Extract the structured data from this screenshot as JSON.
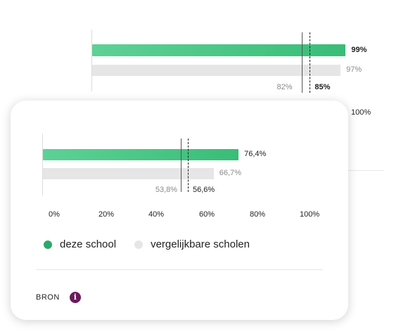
{
  "chart_data": [
    {
      "type": "bar",
      "orientation": "horizontal",
      "series": [
        {
          "name": "deze school",
          "values": [
            99
          ]
        },
        {
          "name": "vergelijkbare scholen",
          "values": [
            97
          ]
        }
      ],
      "reference_lines": [
        {
          "style": "solid",
          "value": 82
        },
        {
          "style": "dashed",
          "value": 85
        }
      ],
      "labels": {
        "school": "99%",
        "compare": "97%",
        "ref_solid": "82%",
        "ref_dashed": "85%",
        "axis_end": "100%"
      },
      "xlim": [
        0,
        100
      ]
    },
    {
      "type": "bar",
      "orientation": "horizontal",
      "series": [
        {
          "name": "deze school",
          "values": [
            76.4
          ]
        },
        {
          "name": "vergelijkbare scholen",
          "values": [
            66.7
          ]
        }
      ],
      "reference_lines": [
        {
          "style": "solid",
          "value": 53.8
        },
        {
          "style": "dashed",
          "value": 56.6
        }
      ],
      "labels": {
        "school": "76,4%",
        "compare": "66,7%",
        "ref_solid": "53,8%",
        "ref_dashed": "56,6%"
      },
      "xlim": [
        0,
        100
      ],
      "xticks": [
        "0%",
        "20%",
        "40%",
        "60%",
        "80%",
        "100%"
      ]
    }
  ],
  "legend": {
    "items": [
      {
        "label": "deze school",
        "color": "#2ea86a"
      },
      {
        "label": "vergelijkbare scholen",
        "color": "#e6e6e6"
      }
    ]
  },
  "source": {
    "label": "BRON",
    "icon": "info-icon"
  },
  "colors": {
    "school": "#3fc27d",
    "compare": "#e6e6e6",
    "info": "#6a1b5b"
  }
}
